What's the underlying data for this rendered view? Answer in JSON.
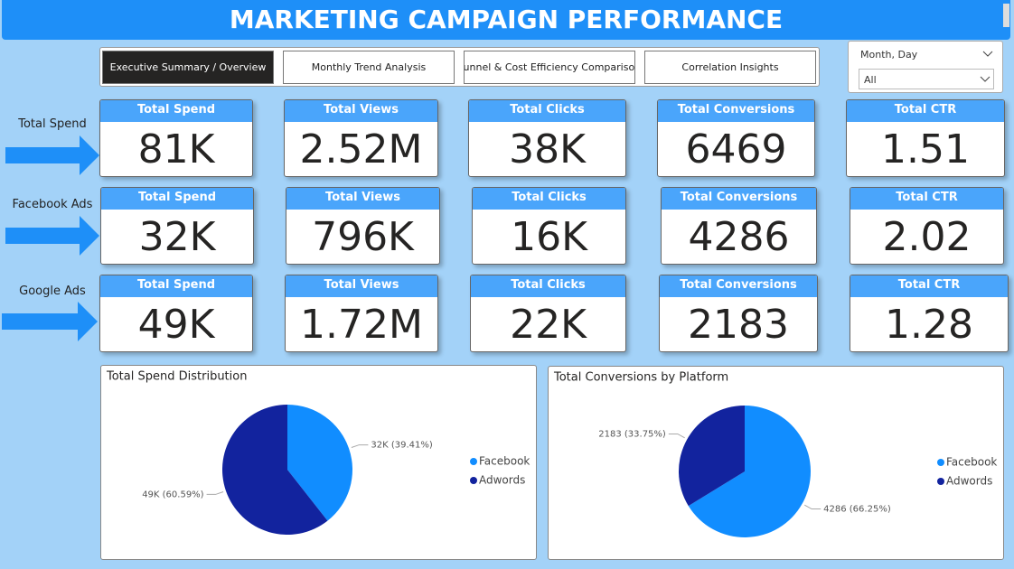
{
  "header": {
    "title": "MARKETING CAMPAIGN PERFORMANCE"
  },
  "tabs": [
    "Executive Summary / Overview",
    "Monthly Trend Analysis",
    "Funnel & Cost Efficiency Comparison",
    "Correlation Insights"
  ],
  "slicer": {
    "label": "Month, Day",
    "value": "All"
  },
  "rows": [
    {
      "label": "Total Spend",
      "cards": [
        {
          "title": "Total Spend",
          "value": "81K"
        },
        {
          "title": "Total Views",
          "value": "2.52M"
        },
        {
          "title": "Total Clicks",
          "value": "38K"
        },
        {
          "title": "Total Conversions",
          "value": "6469"
        },
        {
          "title": "Total CTR",
          "value": "1.51"
        }
      ]
    },
    {
      "label": "Facebook Ads",
      "cards": [
        {
          "title": "Total Spend",
          "value": "32K"
        },
        {
          "title": "Total Views",
          "value": "796K"
        },
        {
          "title": "Total Clicks",
          "value": "16K"
        },
        {
          "title": "Total Conversions",
          "value": "4286"
        },
        {
          "title": "Total CTR",
          "value": "2.02"
        }
      ]
    },
    {
      "label": "Google Ads",
      "cards": [
        {
          "title": "Total Spend",
          "value": "49K"
        },
        {
          "title": "Total Views",
          "value": "1.72M"
        },
        {
          "title": "Total Clicks",
          "value": "22K"
        },
        {
          "title": "Total Conversions",
          "value": "2183"
        },
        {
          "title": "Total CTR",
          "value": "1.28"
        }
      ]
    }
  ],
  "chart_data": [
    {
      "type": "pie",
      "title": "Total Spend Distribution",
      "categories": [
        "Facebook",
        "Adwords"
      ],
      "values": [
        39.41,
        60.59
      ],
      "value_labels": [
        "32K (39.41%)",
        "49K (60.59%)"
      ],
      "colors": [
        "#118DFF",
        "#12239E"
      ]
    },
    {
      "type": "pie",
      "title": "Total Conversions by Platform",
      "categories": [
        "Facebook",
        "Adwords"
      ],
      "values": [
        66.25,
        33.75
      ],
      "value_labels": [
        "4286 (66.25%)",
        "2183 (33.75%)"
      ],
      "colors": [
        "#118DFF",
        "#12239E"
      ]
    }
  ]
}
